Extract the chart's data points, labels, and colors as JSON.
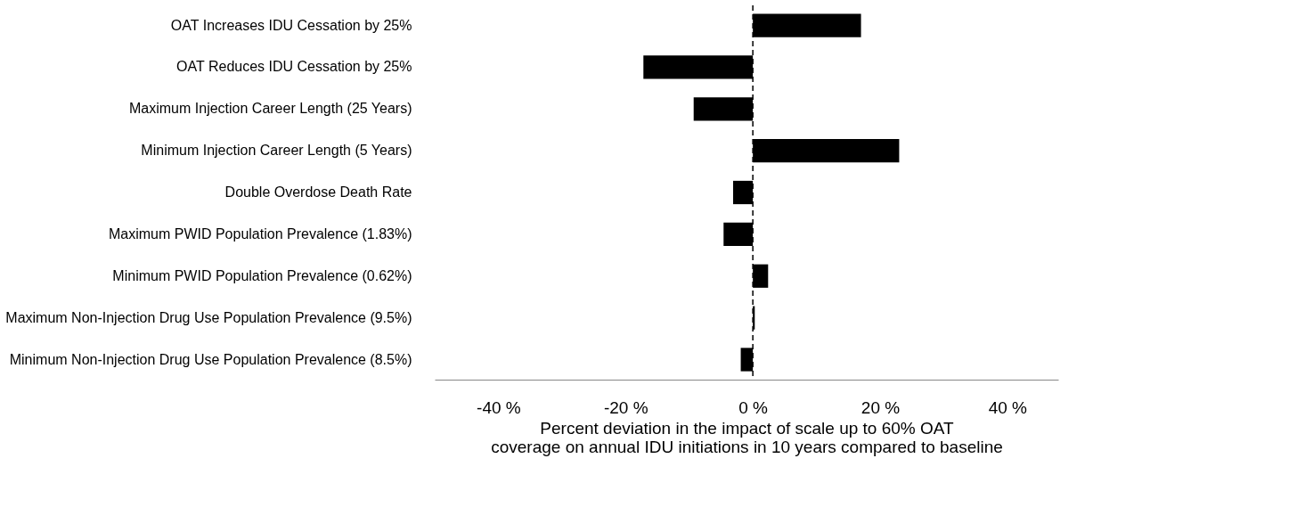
{
  "chart_data": {
    "type": "bar",
    "orientation": "horizontal",
    "categories": [
      "OAT Increases IDU Cessation by 25%",
      "OAT Reduces IDU Cessation by 25%",
      "Maximum Injection Career Length (25 Years)",
      "Minimum Injection Career Length (5 Years)",
      "Double Overdose Death Rate",
      "Maximum PWID Population Prevalence (1.83%)",
      "Minimum PWID Population Prevalence (0.62%)",
      "Maximum Non-Injection Drug Use Population Prevalence (9.5%)",
      "Minimum Non-Injection Drug Use Population Prevalence (8.5%)"
    ],
    "values": [
      17.0,
      -17.2,
      -9.3,
      23.0,
      -3.1,
      -4.6,
      2.4,
      0.3,
      -1.9
    ],
    "color": "#000000",
    "xlabel": "Percent deviation in the impact of scale up to 60% OAT\ncoverage on annual IDU initiations in 10 years compared to baseline",
    "xlim": [
      -50,
      48
    ],
    "xticks": [
      {
        "value": -40,
        "label": "-40 %"
      },
      {
        "value": -20,
        "label": "-20 %"
      },
      {
        "value": 0,
        "label": "0 %"
      },
      {
        "value": 20,
        "label": "20 %"
      },
      {
        "value": 40,
        "label": "40 %"
      }
    ],
    "ref_lines": [
      {
        "axis": "x",
        "value": 0,
        "label": null,
        "color": "#000000",
        "line_style": "dashed"
      }
    ],
    "grid": false
  }
}
